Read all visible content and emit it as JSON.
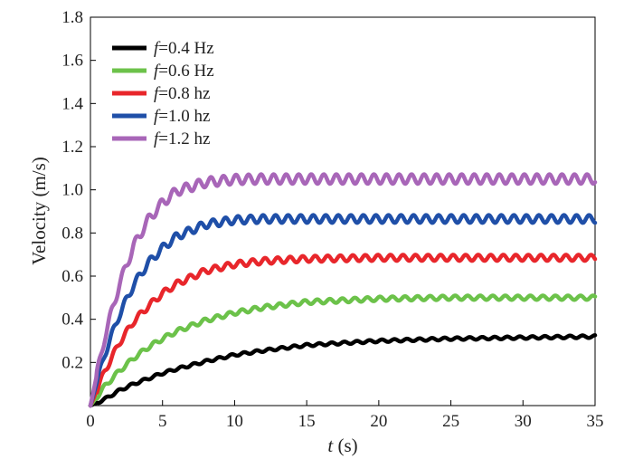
{
  "chart_data": {
    "type": "line",
    "xlabel_var": "t",
    "xlabel_unit": " (s)",
    "ylabel": "Velocity (m/s)",
    "xlim": [
      0,
      35
    ],
    "ylim": [
      0,
      1.8
    ],
    "xticks": [
      "0",
      "5",
      "10",
      "15",
      "20",
      "25",
      "30",
      "35"
    ],
    "yticks": [
      "0.2",
      "0.4",
      "0.6",
      "0.8",
      "1.0",
      "1.2",
      "1.4",
      "1.6",
      "1.8"
    ],
    "xtick_values": [
      0,
      5,
      10,
      15,
      20,
      25,
      30,
      35
    ],
    "ytick_values": [
      0.2,
      0.4,
      0.6,
      0.8,
      1.0,
      1.2,
      1.4,
      1.6,
      1.8
    ],
    "grid": false,
    "legend_position": "top-left",
    "series": [
      {
        "name": "=0.4 Hz",
        "var": "f",
        "color": "#000000",
        "freq": 0.4,
        "x": [
          0,
          1,
          2,
          3,
          4,
          5,
          6,
          8,
          10,
          12,
          15,
          20,
          25,
          30,
          35
        ],
        "y": [
          0,
          0.03,
          0.07,
          0.1,
          0.125,
          0.15,
          0.17,
          0.205,
          0.235,
          0.255,
          0.28,
          0.3,
          0.31,
          0.315,
          0.32
        ]
      },
      {
        "name": "=0.6 Hz",
        "var": "f",
        "color": "#6cc24a",
        "freq": 0.6,
        "x": [
          0,
          1,
          2,
          3,
          4,
          5,
          6,
          8,
          10,
          12,
          15,
          20,
          25,
          30,
          35
        ],
        "y": [
          0,
          0.09,
          0.16,
          0.22,
          0.27,
          0.31,
          0.345,
          0.395,
          0.43,
          0.455,
          0.48,
          0.495,
          0.5,
          0.5,
          0.5
        ]
      },
      {
        "name": "=0.8 hz",
        "var": "f",
        "color": "#e8262b",
        "freq": 0.8,
        "x": [
          0,
          1,
          2,
          3,
          4,
          5,
          6,
          8,
          10,
          12,
          15,
          20,
          25,
          30,
          35
        ],
        "y": [
          0,
          0.16,
          0.29,
          0.39,
          0.46,
          0.52,
          0.565,
          0.625,
          0.655,
          0.67,
          0.68,
          0.685,
          0.685,
          0.685,
          0.685
        ]
      },
      {
        "name": "=1.0 hz",
        "var": "f",
        "color": "#1f4fa8",
        "freq": 1.0,
        "x": [
          0,
          1,
          2,
          3,
          4,
          5,
          6,
          8,
          10,
          12,
          15,
          20,
          25,
          30,
          35
        ],
        "y": [
          0,
          0.24,
          0.42,
          0.56,
          0.66,
          0.73,
          0.785,
          0.84,
          0.86,
          0.865,
          0.865,
          0.865,
          0.865,
          0.865,
          0.865
        ]
      },
      {
        "name": "=1.2 hz",
        "var": "f",
        "color": "#a866b8",
        "freq": 1.2,
        "x": [
          0,
          1,
          2,
          3,
          4,
          5,
          6,
          8,
          10,
          12,
          15,
          20,
          25,
          30,
          35
        ],
        "y": [
          0,
          0.32,
          0.56,
          0.74,
          0.86,
          0.94,
          0.995,
          1.035,
          1.048,
          1.05,
          1.05,
          1.05,
          1.05,
          1.05,
          1.05
        ]
      }
    ]
  }
}
